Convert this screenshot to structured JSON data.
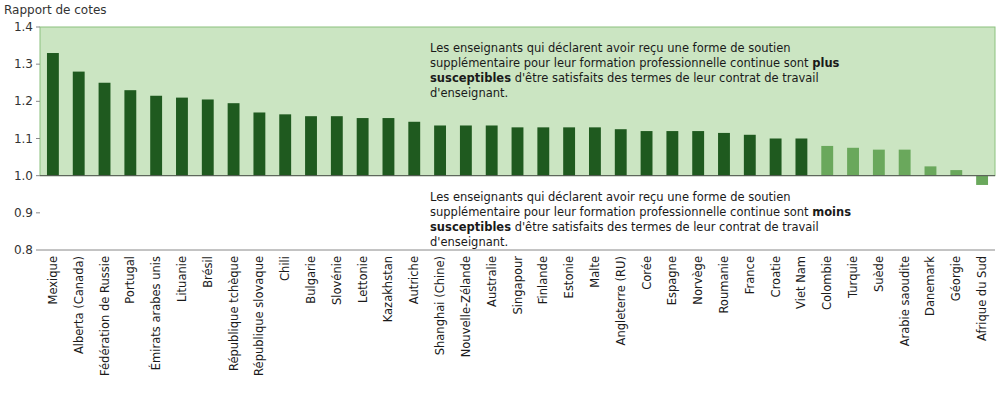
{
  "chart_data": {
    "type": "bar",
    "y_label": "Rapport de cotes",
    "categories": [
      "Mexique",
      "Alberta (Canada)",
      "Fédération de Russie",
      "Portugal",
      "Émirats arabes unis",
      "Lituanie",
      "Brésil",
      "République tchèque",
      "République slovaque",
      "Chili",
      "Bulgarie",
      "Slovénie",
      "Lettonie",
      "Kazakhstan",
      "Autriche",
      "Shanghai (Chine)",
      "Nouvelle-Zélande",
      "Australie",
      "Singapour",
      "Finlande",
      "Estonie",
      "Malte",
      "Angleterre (RU)",
      "Corée",
      "Espagne",
      "Norvège",
      "Roumanie",
      "France",
      "Croatie",
      "Viet Nam",
      "Colombie",
      "Turquie",
      "Suède",
      "Arabie saoudite",
      "Danemark",
      "Géorgie",
      "Afrique du Sud"
    ],
    "values": [
      1.33,
      1.28,
      1.25,
      1.23,
      1.215,
      1.21,
      1.205,
      1.195,
      1.17,
      1.165,
      1.16,
      1.16,
      1.155,
      1.155,
      1.145,
      1.135,
      1.135,
      1.135,
      1.13,
      1.13,
      1.13,
      1.13,
      1.125,
      1.12,
      1.12,
      1.12,
      1.115,
      1.11,
      1.1,
      1.1,
      1.08,
      1.075,
      1.07,
      1.07,
      1.025,
      1.015,
      0.975
    ],
    "colors": [
      "#1f5a1f",
      "#1f5a1f",
      "#1f5a1f",
      "#1f5a1f",
      "#1f5a1f",
      "#1f5a1f",
      "#1f5a1f",
      "#1f5a1f",
      "#1f5a1f",
      "#1f5a1f",
      "#1f5a1f",
      "#1f5a1f",
      "#1f5a1f",
      "#1f5a1f",
      "#1f5a1f",
      "#1f5a1f",
      "#1f5a1f",
      "#1f5a1f",
      "#1f5a1f",
      "#1f5a1f",
      "#1f5a1f",
      "#1f5a1f",
      "#1f5a1f",
      "#1f5a1f",
      "#1f5a1f",
      "#1f5a1f",
      "#1f5a1f",
      "#1f5a1f",
      "#1f5a1f",
      "#1f5a1f",
      "#6aa85c",
      "#6aa85c",
      "#6aa85c",
      "#6aa85c",
      "#6aa85c",
      "#6aa85c",
      "#6aa85c"
    ],
    "baseline": 1,
    "ylim": [
      0.8,
      1.4
    ],
    "yticks": [
      0.8,
      0.9,
      {
        "value": 1,
        "label": "1.0"
      },
      1.1,
      1.2,
      1.3,
      1.4
    ],
    "grid": false,
    "annotations": [
      [
        "Les enseignants qui déclarent avoir reçu une forme de soutien supplémentaire pour leur formation professionnelle continue sont ",
        "plus susceptibles",
        " d'être satisfaits des termes de leur contrat de travail d'enseignant."
      ],
      [
        "Les enseignants qui déclarent avoir reçu une forme de soutien supplémentaire pour leur formation professionnelle continue sont ",
        "moins susceptibles",
        " d'être satisfaits des termes de leur contrat de travail d'enseignant."
      ]
    ]
  }
}
